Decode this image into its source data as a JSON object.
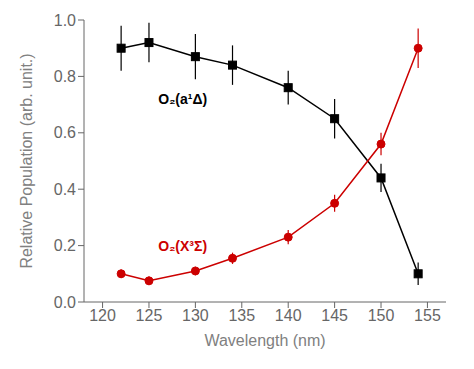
{
  "chart_data": {
    "type": "line",
    "xlabel": "Wavelength (nm)",
    "ylabel": "Relative Population (arb. unit.)",
    "x": [
      122,
      125,
      130,
      134,
      140,
      145,
      150,
      154
    ],
    "series": [
      {
        "color": "#000000",
        "marker": "square",
        "values": [
          0.9,
          0.92,
          0.87,
          0.84,
          0.76,
          0.65,
          0.44,
          0.1
        ],
        "errors": [
          0.08,
          0.07,
          0.08,
          0.07,
          0.06,
          0.07,
          0.05,
          0.04
        ]
      },
      {
        "color": "#cc0000",
        "marker": "circle",
        "values": [
          0.1,
          0.075,
          0.11,
          0.155,
          0.23,
          0.35,
          0.56,
          0.9
        ],
        "errors": [
          0.015,
          0.015,
          0.015,
          0.02,
          0.025,
          0.03,
          0.04,
          0.07
        ]
      }
    ],
    "annotations": [
      {
        "text": "O₂(a¹Δ)",
        "x": 126,
        "y": 0.72,
        "color": "#000000"
      },
      {
        "text": "O₂(X³Σ)",
        "x": 126,
        "y": 0.2,
        "color": "#cc0000"
      }
    ],
    "xlim": [
      118,
      157
    ],
    "ylim": [
      0,
      1
    ],
    "xticks": [
      120,
      125,
      130,
      135,
      140,
      145,
      150,
      155
    ],
    "yticks": [
      {
        "value": 0,
        "label": "0.0"
      },
      0.2,
      0.4,
      0.6,
      0.8,
      {
        "value": 1,
        "label": "1.0"
      }
    ]
  }
}
